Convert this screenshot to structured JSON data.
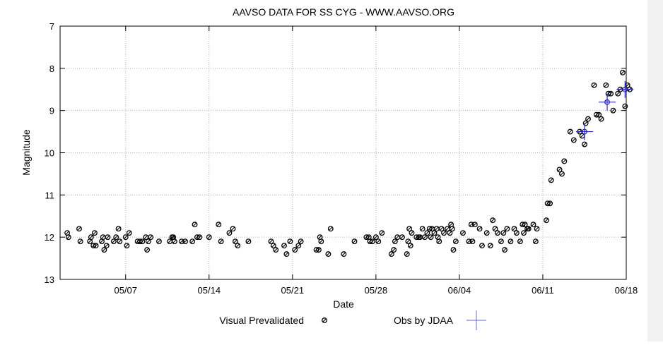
{
  "chart_data": {
    "type": "scatter",
    "title": "AAVSO DATA FOR SS CYG - WWW.AAVSO.ORG",
    "xlabel": "Date",
    "ylabel": "Magnitude",
    "xlim": [
      0,
      47.5
    ],
    "ylim": [
      13,
      7
    ],
    "y_inverted": true,
    "grid": true,
    "x_ticks": [
      {
        "value": 5.5,
        "label": "05/07"
      },
      {
        "value": 12.5,
        "label": "05/14"
      },
      {
        "value": 19.5,
        "label": "05/21"
      },
      {
        "value": 26.5,
        "label": "05/28"
      },
      {
        "value": 33.5,
        "label": "06/04"
      },
      {
        "value": 40.5,
        "label": "06/11"
      },
      {
        "value": 47.5,
        "label": "06/18"
      }
    ],
    "y_ticks": [
      {
        "value": 7,
        "label": "7"
      },
      {
        "value": 8,
        "label": "8"
      },
      {
        "value": 9,
        "label": "9"
      },
      {
        "value": 10,
        "label": "10"
      },
      {
        "value": 11,
        "label": "11"
      },
      {
        "value": 12,
        "label": "12"
      },
      {
        "value": 13,
        "label": "13"
      }
    ],
    "legend": {
      "placement": "bottom",
      "entries": [
        {
          "label": "Visual Prevalidated",
          "marker": "circle"
        },
        {
          "label": "Obs by JDAA",
          "marker": "cross"
        }
      ]
    },
    "series": [
      {
        "name": "Visual Prevalidated",
        "color": "#000000",
        "points": [
          [
            0.6,
            11.9
          ],
          [
            0.7,
            12.0
          ],
          [
            1.6,
            11.8
          ],
          [
            1.7,
            12.1
          ],
          [
            2.5,
            12.1
          ],
          [
            2.6,
            12.0
          ],
          [
            2.8,
            12.2
          ],
          [
            2.9,
            11.9
          ],
          [
            3.0,
            12.2
          ],
          [
            3.5,
            12.1
          ],
          [
            3.6,
            12.0
          ],
          [
            3.7,
            12.3
          ],
          [
            3.9,
            12.2
          ],
          [
            4.0,
            12.0
          ],
          [
            4.5,
            12.1
          ],
          [
            4.7,
            12.0
          ],
          [
            4.9,
            11.8
          ],
          [
            5.0,
            12.1
          ],
          [
            5.5,
            12.0
          ],
          [
            5.6,
            12.2
          ],
          [
            5.8,
            11.9
          ],
          [
            6.5,
            12.1
          ],
          [
            6.7,
            12.1
          ],
          [
            6.9,
            12.1
          ],
          [
            7.2,
            12.0
          ],
          [
            7.3,
            12.3
          ],
          [
            7.4,
            12.1
          ],
          [
            7.6,
            12.0
          ],
          [
            8.3,
            12.1
          ],
          [
            9.2,
            12.1
          ],
          [
            9.4,
            12.0
          ],
          [
            9.5,
            12.0
          ],
          [
            9.6,
            12.1
          ],
          [
            10.2,
            12.1
          ],
          [
            10.5,
            12.1
          ],
          [
            11.1,
            12.1
          ],
          [
            11.3,
            11.7
          ],
          [
            11.5,
            12.0
          ],
          [
            11.7,
            12.0
          ],
          [
            12.5,
            12.0
          ],
          [
            13.3,
            11.7
          ],
          [
            13.5,
            12.1
          ],
          [
            14.2,
            11.9
          ],
          [
            14.5,
            11.8
          ],
          [
            14.7,
            12.1
          ],
          [
            14.9,
            12.2
          ],
          [
            15.8,
            12.1
          ],
          [
            17.7,
            12.1
          ],
          [
            17.9,
            12.2
          ],
          [
            18.1,
            12.3
          ],
          [
            18.8,
            12.2
          ],
          [
            19.0,
            12.4
          ],
          [
            19.3,
            12.1
          ],
          [
            19.7,
            12.3
          ],
          [
            20.0,
            12.2
          ],
          [
            20.2,
            12.1
          ],
          [
            21.5,
            12.3
          ],
          [
            21.7,
            12.3
          ],
          [
            21.8,
            12.0
          ],
          [
            21.9,
            12.1
          ],
          [
            22.5,
            12.4
          ],
          [
            22.7,
            11.8
          ],
          [
            23.8,
            12.4
          ],
          [
            24.7,
            12.1
          ],
          [
            25.7,
            12.0
          ],
          [
            25.9,
            12.0
          ],
          [
            26.0,
            12.1
          ],
          [
            26.2,
            12.1
          ],
          [
            26.5,
            12.0
          ],
          [
            26.7,
            12.1
          ],
          [
            27.0,
            11.9
          ],
          [
            27.8,
            12.4
          ],
          [
            28.0,
            12.3
          ],
          [
            28.1,
            12.1
          ],
          [
            28.3,
            12.0
          ],
          [
            28.7,
            12.0
          ],
          [
            29.1,
            12.4
          ],
          [
            29.2,
            12.1
          ],
          [
            29.3,
            11.8
          ],
          [
            29.4,
            12.2
          ],
          [
            29.5,
            11.9
          ],
          [
            29.9,
            12.0
          ],
          [
            30.1,
            12.0
          ],
          [
            30.2,
            12.0
          ],
          [
            30.4,
            11.8
          ],
          [
            30.6,
            12.0
          ],
          [
            30.8,
            11.9
          ],
          [
            31.0,
            11.8
          ],
          [
            31.1,
            12.0
          ],
          [
            31.2,
            11.8
          ],
          [
            31.4,
            11.9
          ],
          [
            31.6,
            11.8
          ],
          [
            31.7,
            12.0
          ],
          [
            31.8,
            12.1
          ],
          [
            32.0,
            11.8
          ],
          [
            32.2,
            11.9
          ],
          [
            32.5,
            11.8
          ],
          [
            32.7,
            11.9
          ],
          [
            32.8,
            11.7
          ],
          [
            32.9,
            11.8
          ],
          [
            33.0,
            12.3
          ],
          [
            33.2,
            12.1
          ],
          [
            33.8,
            11.9
          ],
          [
            34.3,
            12.1
          ],
          [
            34.5,
            11.7
          ],
          [
            34.6,
            12.1
          ],
          [
            34.8,
            11.7
          ],
          [
            35.2,
            11.8
          ],
          [
            35.4,
            12.2
          ],
          [
            35.8,
            11.9
          ],
          [
            36.1,
            12.2
          ],
          [
            36.3,
            11.6
          ],
          [
            36.5,
            11.8
          ],
          [
            36.7,
            11.9
          ],
          [
            37.0,
            12.1
          ],
          [
            37.2,
            11.9
          ],
          [
            37.3,
            12.3
          ],
          [
            37.5,
            11.8
          ],
          [
            37.8,
            12.1
          ],
          [
            38.1,
            11.8
          ],
          [
            38.3,
            11.9
          ],
          [
            38.6,
            12.1
          ],
          [
            38.8,
            11.7
          ],
          [
            38.9,
            11.9
          ],
          [
            39.0,
            11.7
          ],
          [
            39.2,
            11.8
          ],
          [
            39.3,
            11.8
          ],
          [
            39.7,
            11.7
          ],
          [
            39.9,
            12.1
          ],
          [
            40.0,
            11.8
          ],
          [
            40.8,
            11.6
          ],
          [
            40.9,
            11.2
          ],
          [
            41.1,
            11.2
          ],
          [
            41.2,
            10.65
          ],
          [
            41.9,
            10.4
          ],
          [
            42.1,
            10.5
          ],
          [
            42.3,
            10.2
          ],
          [
            42.8,
            9.5
          ],
          [
            43.1,
            9.7
          ],
          [
            43.6,
            9.5
          ],
          [
            43.8,
            9.6
          ],
          [
            44.0,
            9.8
          ],
          [
            44.1,
            9.3
          ],
          [
            44.3,
            9.2
          ],
          [
            44.8,
            8.4
          ],
          [
            45.0,
            9.1
          ],
          [
            45.2,
            9.1
          ],
          [
            45.4,
            9.2
          ],
          [
            45.8,
            8.4
          ],
          [
            46.0,
            8.6
          ],
          [
            46.2,
            8.6
          ],
          [
            46.4,
            9.0
          ],
          [
            46.8,
            8.6
          ],
          [
            47.0,
            8.5
          ],
          [
            47.2,
            8.1
          ],
          [
            47.4,
            8.9
          ],
          [
            47.6,
            8.4
          ],
          [
            47.8,
            8.5
          ]
        ]
      },
      {
        "name": "Obs by JDAA",
        "color": "#2a2ab8",
        "points": [
          [
            44.0,
            9.5
          ],
          [
            45.9,
            8.8
          ],
          [
            47.4,
            8.5
          ]
        ]
      }
    ]
  }
}
